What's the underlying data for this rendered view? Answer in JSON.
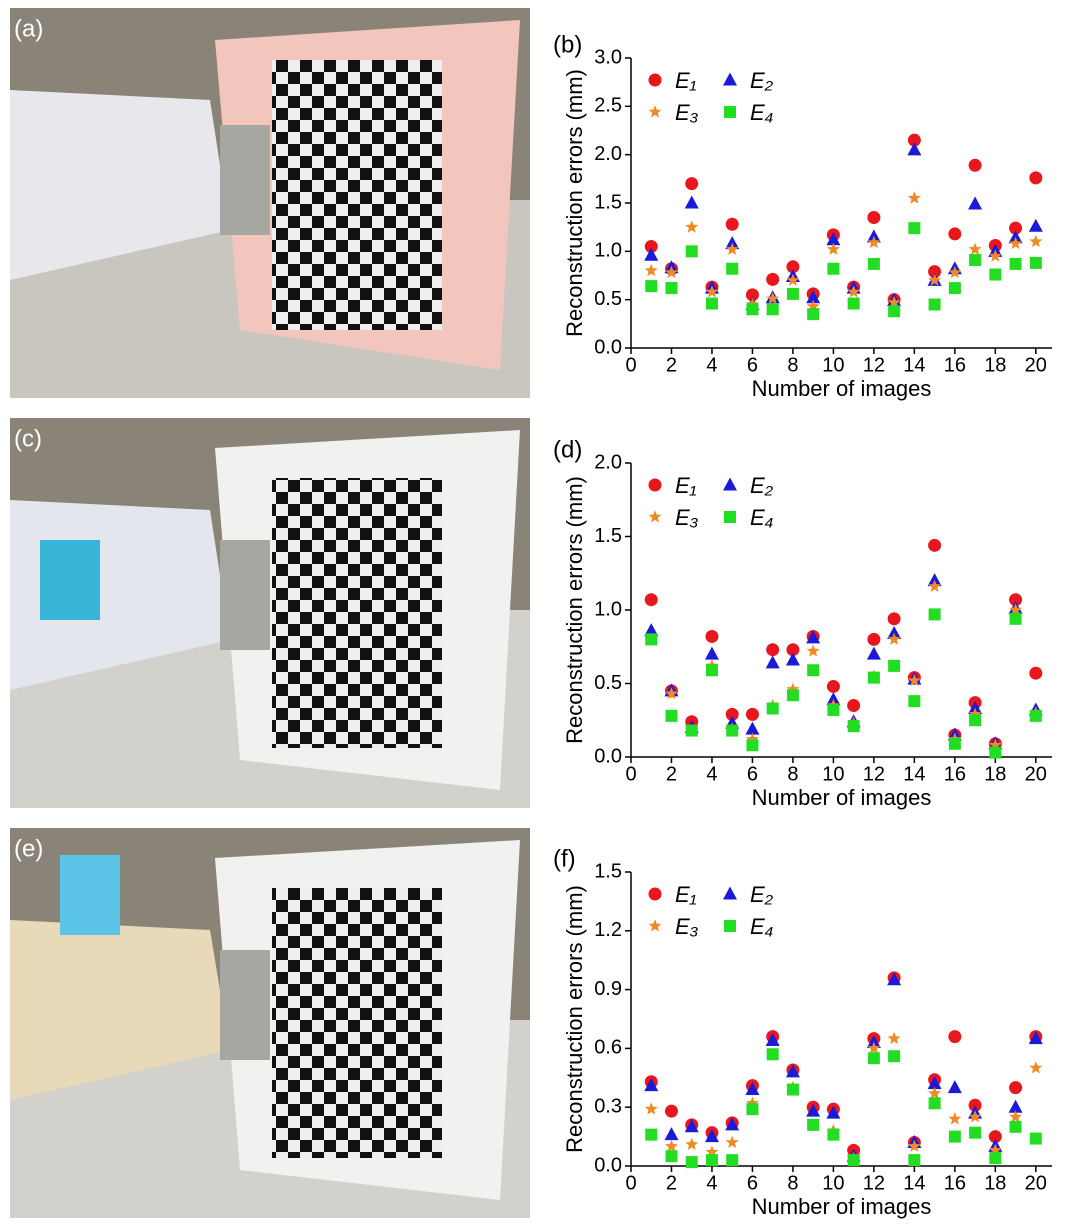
{
  "photo_labels": [
    "(a)",
    "(c)",
    "(e)"
  ],
  "chart_data": [
    {
      "type": "scatter",
      "panel_label": "(b)",
      "xlabel": "Number of images",
      "ylabel": "Reconstruction errors (mm)",
      "x": [
        1,
        2,
        3,
        4,
        5,
        6,
        7,
        8,
        9,
        10,
        11,
        12,
        13,
        14,
        15,
        16,
        17,
        18,
        19,
        20
      ],
      "xlim": [
        0,
        20.8
      ],
      "xticks": [
        0,
        2,
        4,
        6,
        8,
        10,
        12,
        14,
        16,
        18,
        20
      ],
      "ylim": [
        0,
        3
      ],
      "yticks": [
        {
          "value": 0,
          "label": "0.0"
        },
        0.5,
        {
          "value": 1,
          "label": "1.0"
        },
        1.5,
        {
          "value": 2,
          "label": "2.0"
        },
        2.5,
        {
          "value": 3,
          "label": "3.0"
        }
      ],
      "series": [
        {
          "name": "E₁",
          "marker": "circle",
          "color": "#e8171e",
          "values": [
            1.05,
            0.82,
            1.7,
            0.63,
            1.28,
            0.55,
            0.71,
            0.84,
            0.56,
            1.17,
            0.63,
            1.35,
            0.5,
            2.15,
            0.79,
            1.18,
            1.89,
            1.06,
            1.24,
            1.76
          ]
        },
        {
          "name": "E₂",
          "marker": "triangle",
          "color": "#1a1ad8",
          "values": [
            0.96,
            0.83,
            1.5,
            0.62,
            1.08,
            0.45,
            0.52,
            0.74,
            0.52,
            1.12,
            0.62,
            1.15,
            0.49,
            2.05,
            0.7,
            0.82,
            1.49,
            1.0,
            1.14,
            1.26
          ]
        },
        {
          "name": "E₃",
          "marker": "star",
          "color": "#f08a24",
          "values": [
            0.8,
            0.78,
            1.25,
            0.58,
            1.02,
            0.45,
            0.51,
            0.7,
            0.43,
            1.02,
            0.58,
            1.09,
            0.47,
            1.55,
            0.7,
            0.78,
            1.02,
            0.95,
            1.08,
            1.1
          ]
        },
        {
          "name": "E₄",
          "marker": "square",
          "color": "#22dd22",
          "values": [
            0.64,
            0.62,
            1.0,
            0.46,
            0.82,
            0.4,
            0.4,
            0.56,
            0.35,
            0.82,
            0.46,
            0.87,
            0.38,
            1.24,
            0.45,
            0.62,
            0.91,
            0.76,
            0.87,
            0.88
          ]
        }
      ]
    },
    {
      "type": "scatter",
      "panel_label": "(d)",
      "xlabel": "Number of images",
      "ylabel": "Reconstruction errors (mm)",
      "x": [
        1,
        2,
        3,
        4,
        5,
        6,
        7,
        8,
        9,
        10,
        11,
        12,
        13,
        14,
        15,
        16,
        17,
        18,
        19,
        20
      ],
      "xlim": [
        0,
        20.8
      ],
      "xticks": [
        0,
        2,
        4,
        6,
        8,
        10,
        12,
        14,
        16,
        18,
        20
      ],
      "ylim": [
        0,
        2
      ],
      "yticks": [
        {
          "value": 0,
          "label": "0.0"
        },
        0.5,
        {
          "value": 1,
          "label": "1.0"
        },
        1.5,
        {
          "value": 2,
          "label": "2.0"
        }
      ],
      "series": [
        {
          "name": "E₁",
          "marker": "circle",
          "color": "#e8171e",
          "values": [
            1.07,
            0.45,
            0.24,
            0.82,
            0.29,
            0.29,
            0.73,
            0.73,
            0.82,
            0.48,
            0.35,
            0.8,
            0.94,
            0.54,
            1.44,
            0.15,
            0.37,
            0.09,
            1.07,
            0.57
          ]
        },
        {
          "name": "E₂",
          "marker": "triangle",
          "color": "#1a1ad8",
          "values": [
            0.86,
            0.45,
            0.2,
            0.7,
            0.23,
            0.19,
            0.64,
            0.66,
            0.81,
            0.39,
            0.24,
            0.7,
            0.84,
            0.53,
            1.2,
            0.15,
            0.33,
            0.09,
            1.01,
            0.32
          ]
        },
        {
          "name": "E₃",
          "marker": "star",
          "color": "#f08a24",
          "values": [
            0.8,
            0.43,
            0.18,
            0.62,
            0.19,
            0.12,
            0.35,
            0.46,
            0.72,
            0.35,
            0.23,
            0.55,
            0.8,
            0.52,
            1.16,
            0.12,
            0.29,
            0.08,
            1.0,
            0.3
          ]
        },
        {
          "name": "E₄",
          "marker": "square",
          "color": "#22dd22",
          "values": [
            0.8,
            0.28,
            0.18,
            0.59,
            0.18,
            0.08,
            0.33,
            0.42,
            0.59,
            0.32,
            0.21,
            0.54,
            0.62,
            0.38,
            0.97,
            0.09,
            0.25,
            0.03,
            0.94,
            0.28
          ]
        }
      ]
    },
    {
      "type": "scatter",
      "panel_label": "(f)",
      "xlabel": "Number of images",
      "ylabel": "Reconstruction errors (mm)",
      "x": [
        1,
        2,
        3,
        4,
        5,
        6,
        7,
        8,
        9,
        10,
        11,
        12,
        13,
        14,
        15,
        16,
        17,
        18,
        19,
        20
      ],
      "xlim": [
        0,
        20.8
      ],
      "xticks": [
        0,
        2,
        4,
        6,
        8,
        10,
        12,
        14,
        16,
        18,
        20
      ],
      "ylim": [
        0,
        1.5
      ],
      "yticks": [
        {
          "value": 0,
          "label": "0.0"
        },
        0.3,
        0.6,
        0.9,
        1.2,
        1.5
      ],
      "series": [
        {
          "name": "E₁",
          "marker": "circle",
          "color": "#e8171e",
          "values": [
            0.43,
            0.28,
            0.21,
            0.17,
            0.22,
            0.41,
            0.66,
            0.49,
            0.3,
            0.29,
            0.08,
            0.65,
            0.96,
            0.12,
            0.44,
            0.66,
            0.31,
            0.15,
            0.4,
            0.66
          ]
        },
        {
          "name": "E₂",
          "marker": "triangle",
          "color": "#1a1ad8",
          "values": [
            0.41,
            0.16,
            0.2,
            0.15,
            0.21,
            0.39,
            0.64,
            0.48,
            0.28,
            0.27,
            0.05,
            0.63,
            0.95,
            0.12,
            0.42,
            0.4,
            0.27,
            0.1,
            0.3,
            0.65
          ]
        },
        {
          "name": "E₃",
          "marker": "star",
          "color": "#f08a24",
          "values": [
            0.29,
            0.1,
            0.11,
            0.07,
            0.12,
            0.32,
            0.57,
            0.4,
            0.21,
            0.18,
            0.04,
            0.6,
            0.65,
            0.1,
            0.37,
            0.24,
            0.25,
            0.08,
            0.25,
            0.5
          ]
        },
        {
          "name": "E₄",
          "marker": "square",
          "color": "#22dd22",
          "values": [
            0.16,
            0.05,
            0.02,
            0.03,
            0.03,
            0.29,
            0.57,
            0.39,
            0.21,
            0.16,
            0.03,
            0.55,
            0.56,
            0.03,
            0.32,
            0.15,
            0.17,
            0.04,
            0.2,
            0.14
          ]
        }
      ]
    }
  ]
}
